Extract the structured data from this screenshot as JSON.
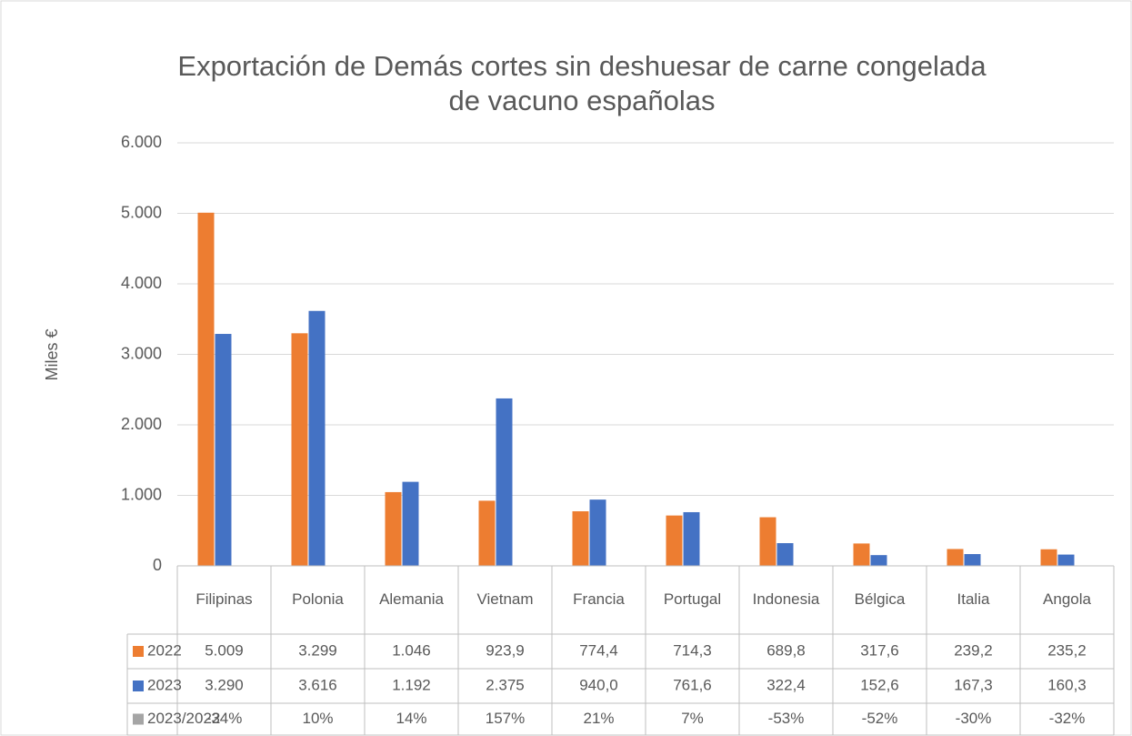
{
  "chart_data": {
    "type": "bar",
    "title": "Exportación de Demás cortes sin deshuesar de carne congelada de vacuno españolas",
    "y_label": "Miles €",
    "categories": [
      "Filipinas",
      "Polonia",
      "Alemania",
      "Vietnam",
      "Francia",
      "Portugal",
      "Indonesia",
      "Bélgica",
      "Italia",
      "Angola"
    ],
    "series": [
      {
        "name": "2022",
        "color": "#ed7d31",
        "values": [
          5009,
          3299,
          1046,
          923.9,
          774.4,
          714.3,
          689.8,
          317.6,
          239.2,
          235.2
        ],
        "value_labels": [
          "5.009",
          "3.299",
          "1.046",
          "923,9",
          "774,4",
          "714,3",
          "689,8",
          "317,6",
          "239,2",
          "235,2"
        ]
      },
      {
        "name": "2023",
        "color": "#4472c4",
        "values": [
          3290,
          3616,
          1192,
          2375,
          940.0,
          761.6,
          322.4,
          152.6,
          167.3,
          160.3
        ],
        "value_labels": [
          "3.290",
          "3.616",
          "1.192",
          "2.375",
          "940,0",
          "761,6",
          "322,4",
          "152,6",
          "167,3",
          "160,3"
        ]
      },
      {
        "name": "2023/2022",
        "color": "#a5a5a5",
        "values": [
          -34,
          10,
          14,
          157,
          21,
          7,
          -53,
          -52,
          -30,
          -32
        ],
        "value_labels": [
          "-34%",
          "10%",
          "14%",
          "157%",
          "21%",
          "7%",
          "-53%",
          "-52%",
          "-30%",
          "-32%"
        ]
      }
    ],
    "ylim": [
      0,
      6000
    ],
    "yticks": [
      0,
      {
        "value": 1000,
        "label": "1.000"
      },
      {
        "value": 2000,
        "label": "2.000"
      },
      {
        "value": 3000,
        "label": "3.000"
      },
      {
        "value": 4000,
        "label": "4.000"
      },
      {
        "value": 5000,
        "label": "5.000"
      },
      {
        "value": 6000,
        "label": "6.000"
      }
    ],
    "grid": true,
    "data_table": true
  }
}
